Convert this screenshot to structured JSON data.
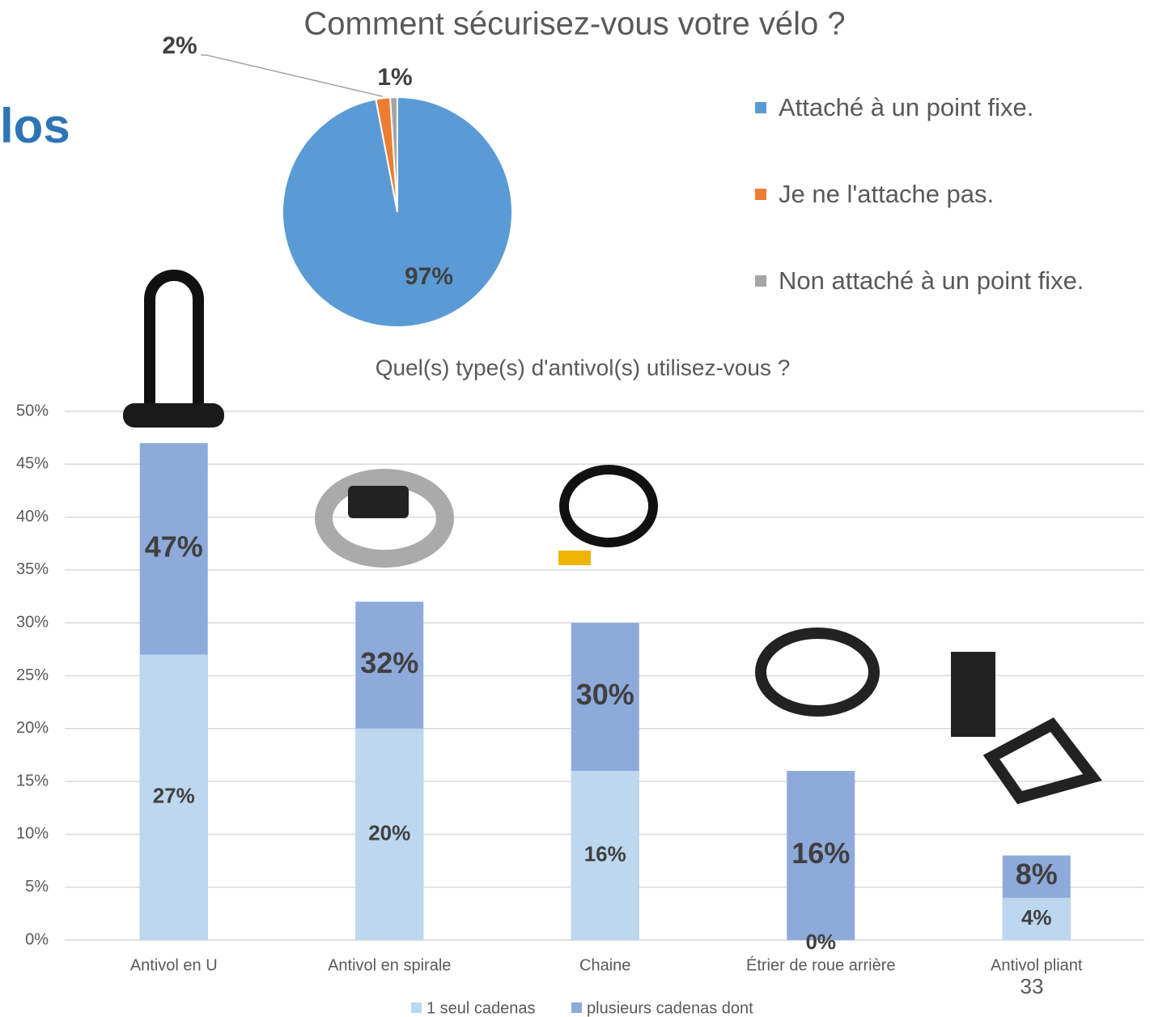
{
  "heading_fragment": "los",
  "page_number": "33",
  "chart_data": [
    {
      "type": "pie",
      "title": "Comment sécurisez-vous votre vélo ?",
      "categories": [
        "Attaché à un point fixe.",
        "Je ne l'attache pas.",
        "Non attaché à un point fixe."
      ],
      "values": [
        97,
        2,
        1
      ],
      "value_labels": [
        "97%",
        "2%",
        "1%"
      ],
      "colors": [
        "#5b9bd5",
        "#ed7d31",
        "#a5a5a5"
      ],
      "legend": "right"
    },
    {
      "type": "bar",
      "title": "Quel(s) type(s) d'antivol(s) utilisez-vous ?",
      "categories": [
        "Antivol en U",
        "Antivol en spirale",
        "Chaine",
        "Étrier de roue arrière",
        "Antivol pliant"
      ],
      "series": [
        {
          "name": "plusieurs cadenas dont",
          "color": "#8eaadb",
          "values": [
            47,
            32,
            30,
            16,
            8
          ],
          "value_labels": [
            "47%",
            "32%",
            "30%",
            "16%",
            "8%"
          ]
        },
        {
          "name": "1 seul cadenas",
          "color": "#bdd7ee",
          "values": [
            27,
            20,
            16,
            0,
            4
          ],
          "value_labels": [
            "27%",
            "20%",
            "16%",
            "0%",
            "4%"
          ]
        }
      ],
      "ylim": [
        0,
        50
      ],
      "yticks": [
        {
          "value": 0,
          "label": "0%"
        },
        {
          "value": 5,
          "label": "5%"
        },
        {
          "value": 10,
          "label": "10%"
        },
        {
          "value": 15,
          "label": "15%"
        },
        {
          "value": 20,
          "label": "20%"
        },
        {
          "value": 25,
          "label": "25%"
        },
        {
          "value": 30,
          "label": "30%"
        },
        {
          "value": 35,
          "label": "35%"
        },
        {
          "value": 40,
          "label": "40%"
        },
        {
          "value": 45,
          "label": "45%"
        },
        {
          "value": 50,
          "label": "50%"
        }
      ],
      "grid": true,
      "legend": "bottom"
    }
  ]
}
